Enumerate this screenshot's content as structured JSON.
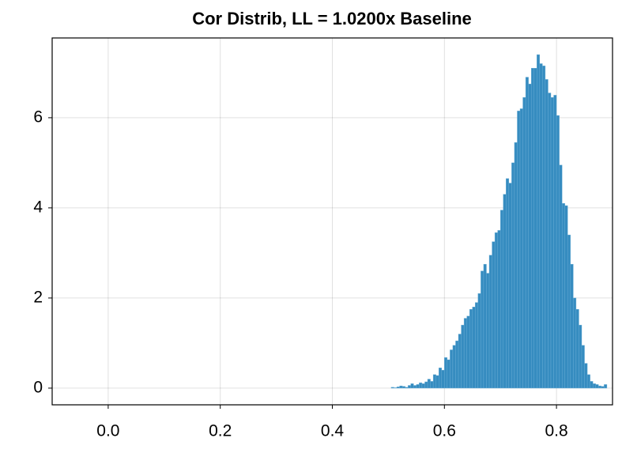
{
  "chart_data": {
    "type": "histogram",
    "title": "Cor Distrib, LL = 1.0200x Baseline",
    "bins": [
      0.505,
      0.51,
      0.515,
      0.52,
      0.525,
      0.53,
      0.535,
      0.54,
      0.545,
      0.55,
      0.555,
      0.56,
      0.565,
      0.57,
      0.575,
      0.58,
      0.585,
      0.59,
      0.595,
      0.6,
      0.605,
      0.61,
      0.615,
      0.62,
      0.625,
      0.63,
      0.635,
      0.64,
      0.645,
      0.65,
      0.655,
      0.66,
      0.665,
      0.67,
      0.675,
      0.68,
      0.685,
      0.69,
      0.695,
      0.7,
      0.705,
      0.71,
      0.715,
      0.72,
      0.725,
      0.73,
      0.735,
      0.74,
      0.745,
      0.75,
      0.755,
      0.76,
      0.765,
      0.77,
      0.775,
      0.78,
      0.785,
      0.79,
      0.795,
      0.8,
      0.805,
      0.81,
      0.815,
      0.82,
      0.825,
      0.83,
      0.835,
      0.84,
      0.845,
      0.85,
      0.855,
      0.86,
      0.865,
      0.87,
      0.875,
      0.88,
      0.885,
      0.89
    ],
    "values": [
      0.02,
      0.01,
      0.03,
      0.05,
      0.04,
      0.02,
      0.06,
      0.1,
      0.06,
      0.08,
      0.12,
      0.1,
      0.14,
      0.2,
      0.15,
      0.3,
      0.28,
      0.45,
      0.4,
      0.68,
      0.63,
      0.85,
      0.95,
      1.05,
      1.2,
      1.4,
      1.55,
      1.6,
      1.75,
      1.8,
      1.9,
      2.1,
      2.6,
      2.75,
      2.55,
      2.95,
      3.25,
      3.45,
      3.5,
      3.95,
      4.3,
      4.65,
      4.55,
      5.0,
      5.45,
      6.15,
      6.2,
      6.45,
      6.9,
      6.75,
      7.1,
      7.1,
      7.4,
      7.2,
      7.15,
      6.85,
      6.55,
      6.45,
      6.5,
      6.05,
      4.95,
      4.1,
      4.05,
      3.4,
      2.75,
      2.0,
      1.75,
      1.4,
      0.95,
      0.55,
      0.3,
      0.15,
      0.1,
      0.08,
      0.05,
      0.04,
      0.08
    ],
    "color": "#368cc0",
    "xlim": [
      -0.1,
      0.9
    ],
    "xticks": [
      {
        "value": 0,
        "label": "0.0"
      },
      0.2,
      0.4,
      0.6,
      0.8
    ],
    "ylim": [
      -0.37,
      7.77
    ],
    "yticks": [
      0,
      2,
      4,
      6
    ],
    "grid": true
  }
}
